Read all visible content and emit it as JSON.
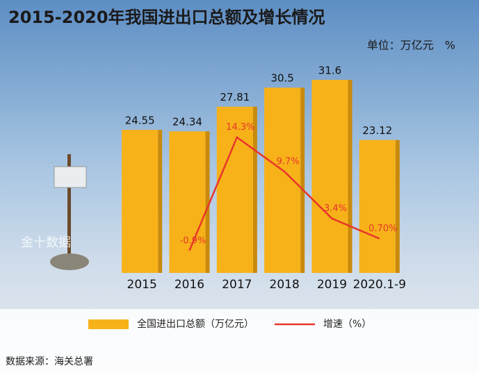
{
  "chart_data": {
    "type": "bar-line",
    "title": "2015-2020年我国进出口总额及增长情况",
    "subtitle": "单位：万亿元　%",
    "watermark": "金十数据",
    "source": "数据来源：海关总署",
    "categories": [
      "2015",
      "2016",
      "2017",
      "2018",
      "2019",
      "2020.1-9"
    ],
    "series": [
      {
        "name": "全国进出口总额（万亿元）",
        "color": "#f7b219",
        "type": "bar",
        "values": [
          24.55,
          24.34,
          27.81,
          30.5,
          31.6,
          23.12
        ]
      },
      {
        "name": "增速（%）",
        "color": "#e8352a",
        "type": "line",
        "axis": "y2",
        "values": [
          null,
          -0.9,
          14.3,
          9.7,
          3.4,
          0.7
        ],
        "value_labels": [
          null,
          "-0.9%",
          "14.3%",
          "9.7%",
          "3.4%",
          "0.70%"
        ]
      }
    ],
    "ylim": [
      4.4,
      36
    ],
    "y2lim": [
      -3.9,
      26.2
    ],
    "legend": "bottom"
  }
}
